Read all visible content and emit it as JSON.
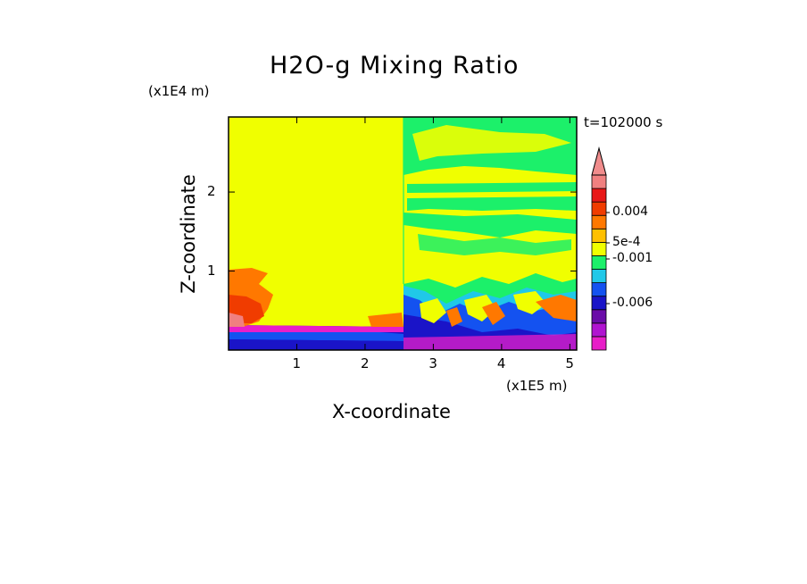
{
  "chart_data": {
    "type": "heatmap",
    "title": "H2O-g Mixing Ratio",
    "xlabel": "X-coordinate",
    "ylabel": "Z-coordinate",
    "x_multiplier": "(x1E5 m)",
    "y_multiplier": "(x1E4 m)",
    "time_label": "t=102000 s",
    "xlim": [
      0,
      5.1
    ],
    "ylim": [
      0,
      2.95
    ],
    "x_ticks": [
      1,
      2,
      3,
      4,
      5
    ],
    "x_tick_labels": [
      "1",
      "2",
      "3",
      "4",
      "5"
    ],
    "y_ticks": [
      1,
      2
    ],
    "y_tick_labels": [
      "1",
      "2"
    ],
    "colorbar": {
      "extend": "max",
      "bands": [
        "#e81ec8",
        "#b014d0",
        "#6a0ca8",
        "#1a14c8",
        "#1452f0",
        "#20c8e8",
        "#1cf06a",
        "#f0ff00",
        "#ffc000",
        "#ff7800",
        "#f03c00",
        "#e81818",
        "#f08080"
      ],
      "extend_color": "#f08c8c",
      "labels": [
        "0.004",
        "5e-4",
        "-0.001",
        "-0.006"
      ],
      "label_levels": [
        0.004,
        0.0005,
        -0.001,
        -0.006
      ]
    },
    "colors": {
      "background_field": "#f0ff00",
      "green_layer": "#1cf06a",
      "blue": "#1452f0",
      "dark_blue": "#1a14c8",
      "cyan": "#20c8e8",
      "magenta": "#e81ec8",
      "orange": "#ff7800",
      "red": "#f03c00",
      "pink": "#f08080"
    }
  }
}
